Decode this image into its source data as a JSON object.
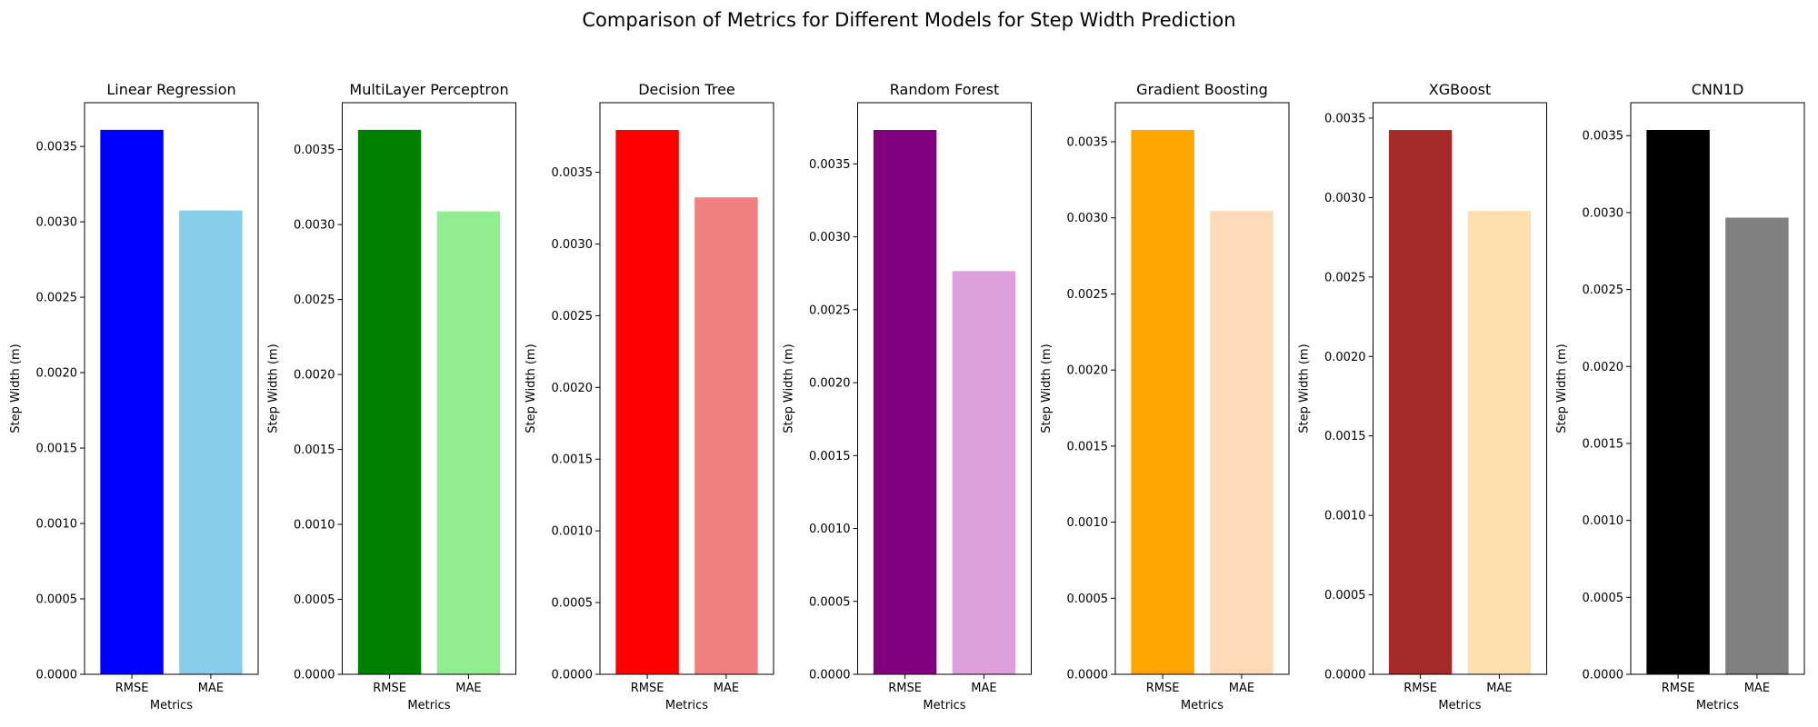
{
  "figure": {
    "title": "Comparison of Metrics for Different Models for Step Width Prediction"
  },
  "chart_data": [
    {
      "type": "bar",
      "title": "Linear Regression",
      "categories": [
        "RMSE",
        "MAE"
      ],
      "values": [
        0.00361,
        0.003075
      ],
      "colors": [
        "#0000ff",
        "#87ceeb"
      ],
      "xlabel": "Metrics",
      "ylabel": "Step Width (m)",
      "ylim": [
        0,
        0.00379
      ],
      "yticks": [
        0.0,
        0.0005,
        0.001,
        0.0015,
        0.002,
        0.0025,
        0.003,
        0.0035
      ],
      "ytick_labels": [
        "0.0000",
        "0.0005",
        "0.0010",
        "0.0015",
        "0.0020",
        "0.0025",
        "0.0030",
        "0.0035"
      ]
    },
    {
      "type": "bar",
      "title": "MultiLayer Perceptron",
      "categories": [
        "RMSE",
        "MAE"
      ],
      "values": [
        0.003632,
        0.003088
      ],
      "colors": [
        "#008000",
        "#90ee90"
      ],
      "xlabel": "Metrics",
      "ylabel": "Step Width (m)",
      "ylim": [
        0,
        0.003813
      ],
      "yticks": [
        0.0,
        0.0005,
        0.001,
        0.0015,
        0.002,
        0.0025,
        0.003,
        0.0035
      ],
      "ytick_labels": [
        "0.0000",
        "0.0005",
        "0.0010",
        "0.0015",
        "0.0020",
        "0.0025",
        "0.0030",
        "0.0035"
      ]
    },
    {
      "type": "bar",
      "title": "Decision Tree",
      "categories": [
        "RMSE",
        "MAE"
      ],
      "values": [
        0.003795,
        0.003325
      ],
      "colors": [
        "#ff0000",
        "#f08080"
      ],
      "xlabel": "Metrics",
      "ylabel": "Step Width (m)",
      "ylim": [
        0,
        0.003985
      ],
      "yticks": [
        0.0,
        0.0005,
        0.001,
        0.0015,
        0.002,
        0.0025,
        0.003,
        0.0035
      ],
      "ytick_labels": [
        "0.0000",
        "0.0005",
        "0.0010",
        "0.0015",
        "0.0020",
        "0.0025",
        "0.0030",
        "0.0035"
      ]
    },
    {
      "type": "bar",
      "title": "Random Forest",
      "categories": [
        "RMSE",
        "MAE"
      ],
      "values": [
        0.003733,
        0.002765
      ],
      "colors": [
        "#800080",
        "#dda0dd"
      ],
      "xlabel": "Metrics",
      "ylabel": "Step Width (m)",
      "ylim": [
        0,
        0.00392
      ],
      "yticks": [
        0.0,
        0.0005,
        0.001,
        0.0015,
        0.002,
        0.0025,
        0.003,
        0.0035
      ],
      "ytick_labels": [
        "0.0000",
        "0.0005",
        "0.0010",
        "0.0015",
        "0.0020",
        "0.0025",
        "0.0030",
        "0.0035"
      ]
    },
    {
      "type": "bar",
      "title": "Gradient Boosting",
      "categories": [
        "RMSE",
        "MAE"
      ],
      "values": [
        0.003578,
        0.003045
      ],
      "colors": [
        "#ffa500",
        "#ffdab9"
      ],
      "xlabel": "Metrics",
      "ylabel": "Step Width (m)",
      "ylim": [
        0,
        0.003757
      ],
      "yticks": [
        0.0,
        0.0005,
        0.001,
        0.0015,
        0.002,
        0.0025,
        0.003,
        0.0035
      ],
      "ytick_labels": [
        "0.0000",
        "0.0005",
        "0.0010",
        "0.0015",
        "0.0020",
        "0.0025",
        "0.0030",
        "0.0035"
      ]
    },
    {
      "type": "bar",
      "title": "XGBoost",
      "categories": [
        "RMSE",
        "MAE"
      ],
      "values": [
        0.003425,
        0.002915
      ],
      "colors": [
        "#a52a2a",
        "#fedfaf"
      ],
      "xlabel": "Metrics",
      "ylabel": "Step Width (m)",
      "ylim": [
        0,
        0.003597
      ],
      "yticks": [
        0.0,
        0.0005,
        0.001,
        0.0015,
        0.002,
        0.0025,
        0.003,
        0.0035
      ],
      "ytick_labels": [
        "0.0000",
        "0.0005",
        "0.0010",
        "0.0015",
        "0.0020",
        "0.0025",
        "0.0030",
        "0.0035"
      ]
    },
    {
      "type": "bar",
      "title": "CNN1D",
      "categories": [
        "RMSE",
        "MAE"
      ],
      "values": [
        0.003537,
        0.002967
      ],
      "colors": [
        "#000000",
        "#808080"
      ],
      "xlabel": "Metrics",
      "ylabel": "Step Width (m)",
      "ylim": [
        0,
        0.003714
      ],
      "yticks": [
        0.0,
        0.0005,
        0.001,
        0.0015,
        0.002,
        0.0025,
        0.003,
        0.0035
      ],
      "ytick_labels": [
        "0.0000",
        "0.0005",
        "0.0010",
        "0.0015",
        "0.0020",
        "0.0025",
        "0.0030",
        "0.0035"
      ]
    }
  ]
}
